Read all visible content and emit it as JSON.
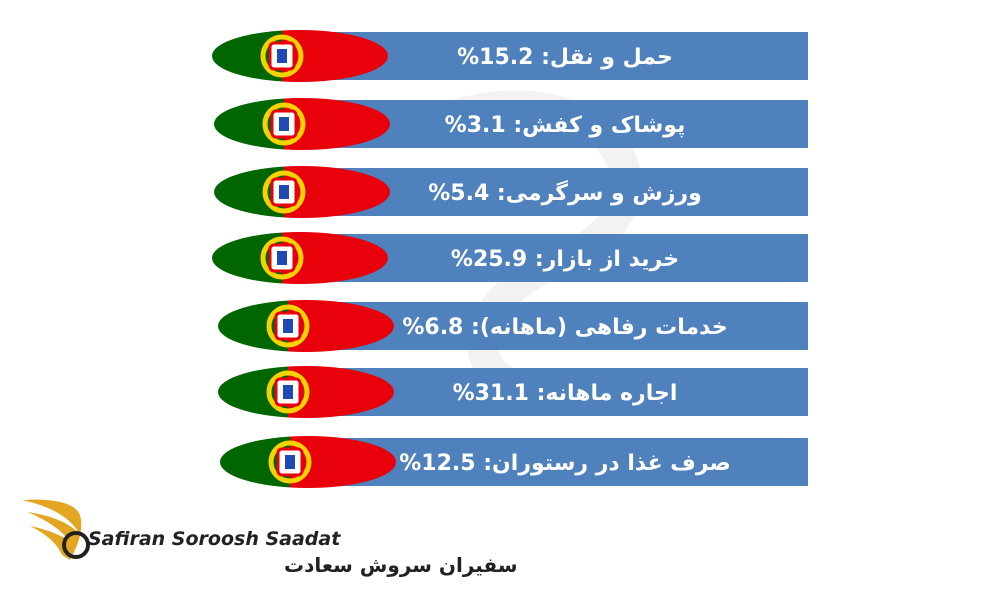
{
  "items": [
    {
      "label": "حمل و نقل: 15.2%"
    },
    {
      "label": "پوشاک و کفش: 3.1%"
    },
    {
      "label": "ورزش و سرگرمی: 5.4%"
    },
    {
      "label": "خرید از بازار: 25.9%"
    },
    {
      "label": "خدمات رفاهی (ماهانه): 6.8%"
    },
    {
      "label": "اجاره ماهانه: 31.1%"
    },
    {
      "label": "صرف غذا در رستوران: 12.5%"
    }
  ],
  "logo": {
    "latin": "Safiran Soroosh Saadat",
    "persian": "سفیران سروش سعادت"
  }
}
